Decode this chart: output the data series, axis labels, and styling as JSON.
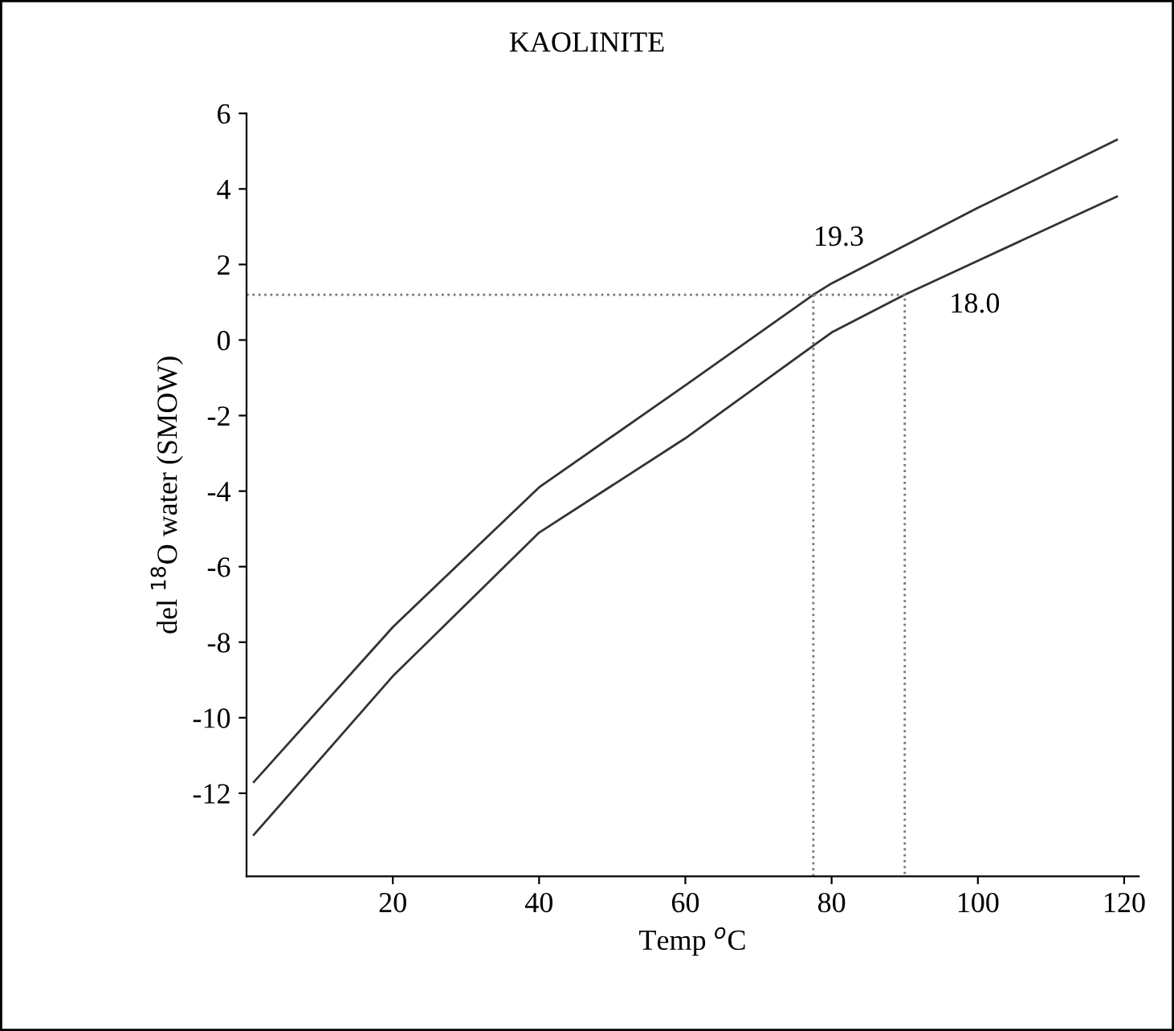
{
  "chart_data": {
    "type": "line",
    "title": "KAOLINITE",
    "xlabel": "Temp $^{o}$C",
    "ylabel": "del $^{18}$O water (SMOW)",
    "xlim": [
      0,
      122
    ],
    "ylim": [
      -14.2,
      6
    ],
    "xticks": [
      20,
      40,
      60,
      80,
      100,
      120
    ],
    "yticks": [
      -12,
      -10,
      -8,
      -6,
      -4,
      -2,
      0,
      2,
      4,
      6
    ],
    "grid": false,
    "legend": false,
    "marker": "none",
    "series": [
      {
        "color": "#333333",
        "line_style": "solid",
        "x": [
          1,
          20,
          40,
          60,
          77.5,
          80,
          100,
          119
        ],
        "values": [
          -11.7,
          -7.6,
          -3.9,
          -1.2,
          1.2,
          1.5,
          3.5,
          5.3
        ]
      },
      {
        "color": "#333333",
        "line_style": "solid",
        "x": [
          1,
          20,
          40,
          60,
          80,
          90,
          100,
          119
        ],
        "values": [
          -13.1,
          -8.9,
          -5.1,
          -2.6,
          0.2,
          1.2,
          2.1,
          3.8
        ]
      },
      {
        "color": "#777777",
        "line_style": "dotted",
        "x": [
          0,
          90,
          90
        ],
        "values": [
          1.2,
          1.2,
          -14.2
        ]
      },
      {
        "color": "#777777",
        "line_style": "dotted",
        "x": [
          77.5,
          77.5
        ],
        "values": [
          1.2,
          -14.2
        ]
      }
    ],
    "annotations": [
      {
        "text": "19.3",
        "x": 77.5,
        "y": 1.2
      },
      {
        "text": "18.0",
        "x": 90,
        "y": 1.2
      }
    ]
  }
}
